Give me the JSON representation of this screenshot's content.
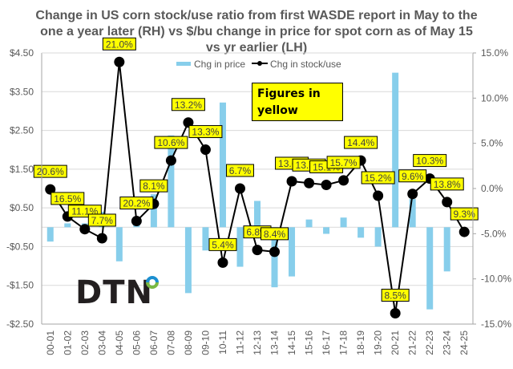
{
  "chart_data": {
    "type": "bar+line",
    "title": "Change in US corn stock/use ratio from first WASDE report in May to the one a year later (RH) vs $/bu change in price for spot corn as of May 15 vs yr earlier (LH)",
    "categories": [
      "00-01",
      "01-02",
      "02-03",
      "03-04",
      "04-05",
      "05-06",
      "06-07",
      "07-08",
      "08-09",
      "09-10",
      "10-11",
      "11-12",
      "12-13",
      "13-14",
      "14-15",
      "15-16",
      "16-17",
      "17-18",
      "18-19",
      "19-20",
      "20-21",
      "21-22",
      "22-23",
      "23-24",
      "24-25"
    ],
    "series": [
      {
        "name": "Chg in price",
        "type": "bar",
        "axis": "left",
        "color": "#87ceeb",
        "values": [
          -0.37,
          0.1,
          0.1,
          0.4,
          -0.88,
          0.15,
          0.85,
          2.37,
          -1.7,
          -0.6,
          3.22,
          -1.02,
          0.68,
          -1.55,
          -1.27,
          0.2,
          -0.17,
          0.25,
          -0.27,
          -0.5,
          3.99,
          0.73,
          -2.12,
          -1.14,
          null
        ]
      },
      {
        "name": "Chg in stock/use",
        "type": "line",
        "axis": "right",
        "color": "#000000",
        "values": [
          -0.1,
          -3.1,
          -4.5,
          -5.5,
          14.0,
          -3.6,
          -1.7,
          3.1,
          7.3,
          4.3,
          -8.2,
          0.0,
          -6.8,
          -7.0,
          0.8,
          0.6,
          0.4,
          0.9,
          3.1,
          -0.8,
          -13.8,
          -0.6,
          1.1,
          -1.5,
          -4.8
        ],
        "data_labels": [
          "20.6%",
          "16.5%",
          "11.1%",
          "7.7%",
          "21.0%",
          "20.2%",
          "8.1%",
          "10.6%",
          "13.2%",
          "13.3%",
          "5.4%",
          "6.7%",
          "6.8%",
          "8.4%",
          "13.6%",
          "13.3%",
          "15.1%",
          "15.7%",
          "14.4%",
          "15.2%",
          "8.5%",
          "9.6%",
          "10.3%",
          "13.8%",
          "9.3%"
        ]
      }
    ],
    "y_left": {
      "ticks": [
        "$4.50",
        "$3.50",
        "$2.50",
        "$1.50",
        "$0.50",
        "-$0.50",
        "-$1.50",
        "-$2.50"
      ],
      "range": [
        -2.5,
        4.5
      ]
    },
    "y_right": {
      "ticks": [
        "15.0%",
        "10.0%",
        "5.0%",
        "0.0%",
        "-5.0%",
        "-10.0%",
        "-15.0%"
      ],
      "range": [
        -15,
        15
      ]
    },
    "legend": {
      "position": "top-center",
      "entries": [
        "Chg in price",
        "Chg in stock/use"
      ]
    },
    "grid": true,
    "annotation": "Figures in yellow",
    "label_color": "#ffff00"
  },
  "logo": {
    "text": "DTN"
  }
}
